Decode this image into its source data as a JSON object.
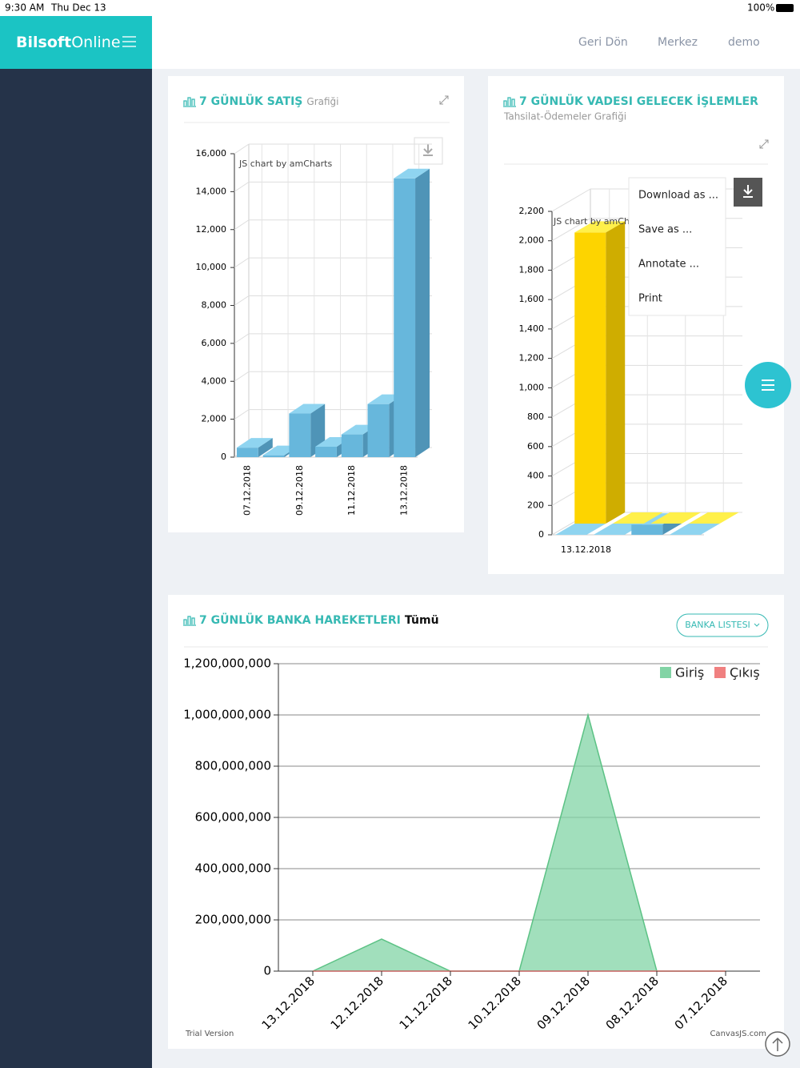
{
  "status_bar": {
    "time": "9:30 AM",
    "date": "Thu Dec 13",
    "battery": "100%"
  },
  "sidebar": {
    "brand_bold": "Bilsoft",
    "brand_light": "Online"
  },
  "nav": [
    "Geri Dön",
    "Merkez",
    "demo"
  ],
  "export_menu": [
    "Download as ...",
    "Save as ...",
    "Annotate ...",
    "Print"
  ],
  "chart_data": [
    {
      "type": "bar3d",
      "title": "7 GÜNLÜK SATIŞ",
      "subtitle": "Grafiği",
      "credit": "JS chart by amCharts",
      "categories": [
        "07.12.2018",
        null,
        "09.12.2018",
        null,
        "11.12.2018",
        null,
        "13.12.2018"
      ],
      "series": [
        {
          "color": "#67b7dc",
          "values": [
            500,
            100,
            2300,
            550,
            1200,
            2800,
            14700
          ]
        }
      ],
      "ylim": [
        0,
        16000
      ],
      "yticks": [
        0,
        {
          "value": 2000,
          "label": "2,000"
        },
        {
          "value": 4000,
          "label": "4,000"
        },
        {
          "value": 6000,
          "label": "6,000"
        },
        {
          "value": 8000,
          "label": "8,000"
        },
        {
          "value": 10000,
          "label": "10,000"
        },
        {
          "value": 12000,
          "label": "12,000"
        },
        {
          "value": 14000,
          "label": "14,000"
        },
        {
          "value": 16000,
          "label": "16,000"
        }
      ],
      "grid": true
    },
    {
      "type": "bar3d",
      "title": "7 GÜNLÜK VADESI GELECEK İŞLEMLER",
      "subtitle": "Tahsilat-Ödemeler Grafiği",
      "credit": "JS chart by amCharts",
      "categories": [
        "13.12.2018",
        null,
        null,
        null
      ],
      "series": [
        {
          "color": "#fdd400",
          "values": [
            1980,
            0,
            0,
            0
          ]
        },
        {
          "color": "#67b7dc",
          "values": [
            0,
            0,
            70,
            0
          ]
        }
      ],
      "ylim": [
        0,
        2200
      ],
      "yticks": [
        0,
        200,
        400,
        600,
        800,
        {
          "value": 1000,
          "label": "1,000"
        },
        {
          "value": 1200,
          "label": "1,200"
        },
        {
          "value": 1400,
          "label": "1,400"
        },
        {
          "value": 1600,
          "label": "1,600"
        },
        {
          "value": 1800,
          "label": "1,800"
        },
        {
          "value": 2000,
          "label": "2,000"
        },
        {
          "value": 2200,
          "label": "2,200"
        }
      ],
      "grid": true
    },
    {
      "type": "area",
      "title": "7 GÜNLÜK BANKA HAREKETLERI",
      "subtitle": "Tümü",
      "button": "BANKA LISTESI",
      "categories": [
        "13.12.2018",
        "12.12.2018",
        "11.12.2018",
        "10.12.2018",
        "09.12.2018",
        "08.12.2018",
        "07.12.2018"
      ],
      "series": [
        {
          "name": "Giriş",
          "color": "#82d4a5",
          "values": [
            0,
            125000000,
            0,
            0,
            1000000000,
            0,
            0
          ]
        },
        {
          "name": "Çıkış",
          "color": "#f08080",
          "values": [
            0,
            0,
            0,
            0,
            0,
            0,
            0
          ]
        }
      ],
      "ylim": [
        0,
        1200000000
      ],
      "yticks": [
        0,
        {
          "value": 200000000,
          "label": "200,000,000"
        },
        {
          "value": 400000000,
          "label": "400,000,000"
        },
        {
          "value": 600000000,
          "label": "600,000,000"
        },
        {
          "value": 800000000,
          "label": "800,000,000"
        },
        {
          "value": 1000000000,
          "label": "1,000,000,000"
        },
        {
          "value": 1200000000,
          "label": "1,200,000,000"
        }
      ],
      "grid": true,
      "legend": "top-right",
      "footer_left": "Trial Version",
      "footer_right": "CanvasJS.com"
    }
  ]
}
